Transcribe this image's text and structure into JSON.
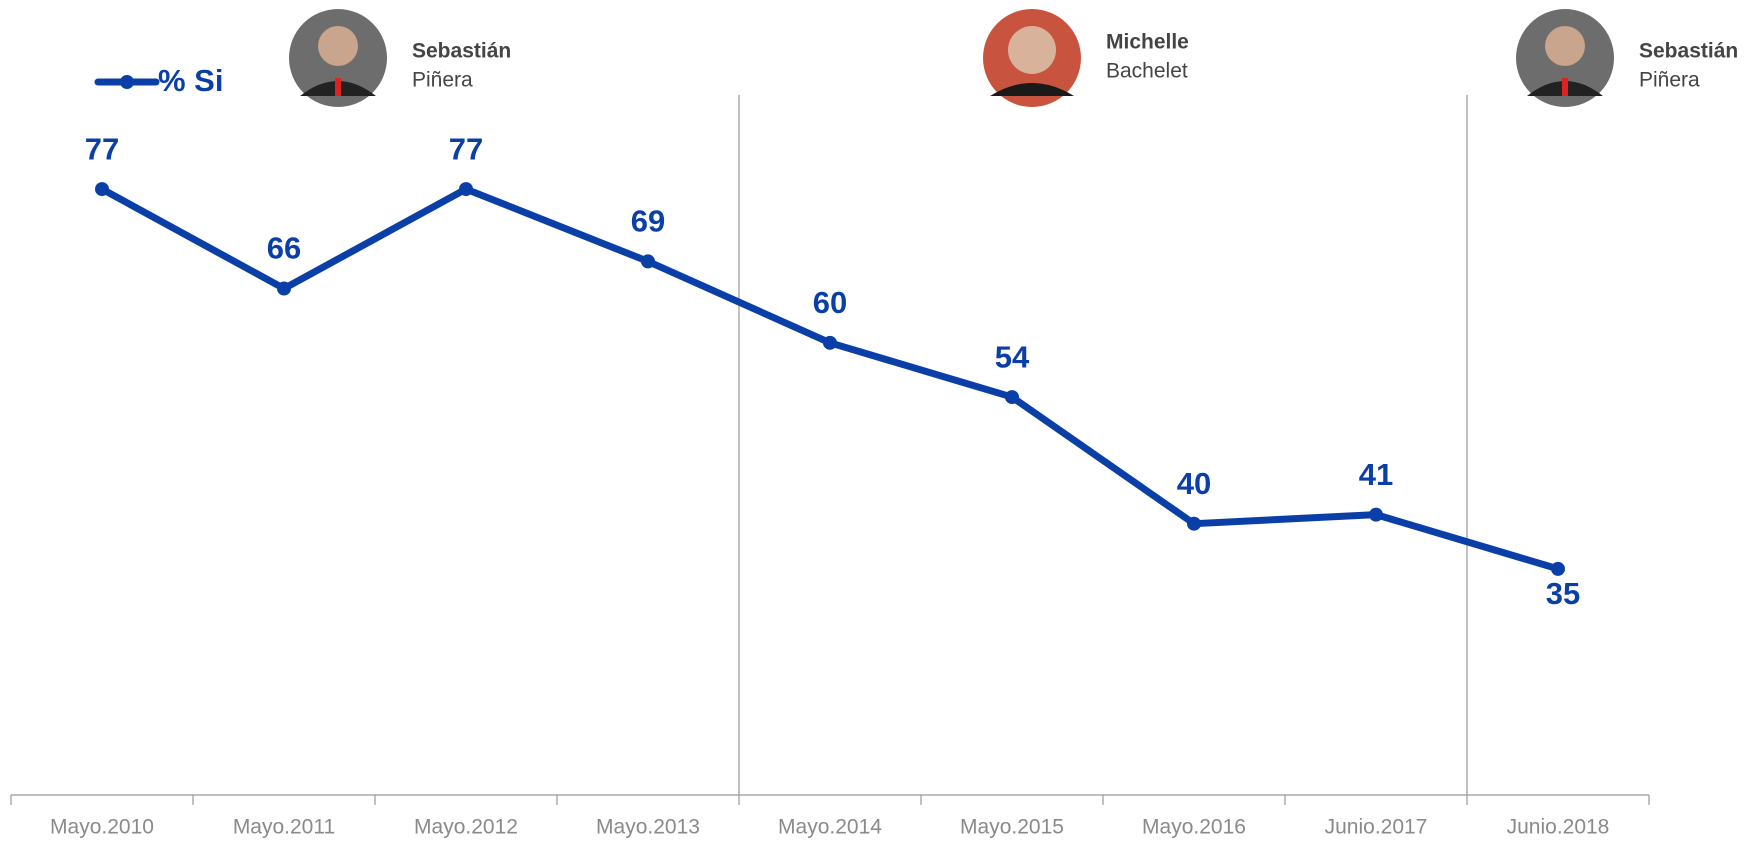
{
  "chart_data": {
    "type": "line",
    "categories": [
      "Mayo.2010",
      "Mayo.2011",
      "Mayo.2012",
      "Mayo.2013",
      "Mayo.2014",
      "Mayo.2015",
      "Mayo.2016",
      "Junio.2017",
      "Junio.2018"
    ],
    "series": [
      {
        "name": "% Si",
        "color": "#0b3fa8",
        "values": [
          77,
          66,
          77,
          69,
          60,
          54,
          40,
          41,
          35
        ]
      }
    ],
    "ylim": [
      10,
      90
    ],
    "legend": "top-left",
    "presidents": [
      {
        "first": "Sebastián",
        "last": "Piñera"
      },
      {
        "first": "Michelle",
        "last": "Bachelet"
      },
      {
        "first": "Sebastián",
        "last": "Piñera"
      }
    ]
  }
}
